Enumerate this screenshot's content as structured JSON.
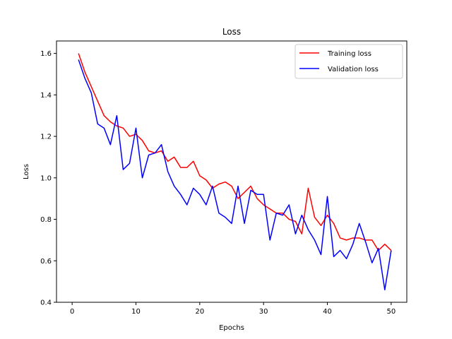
{
  "chart_data": {
    "type": "line",
    "title": "Loss",
    "xlabel": "Epochs",
    "ylabel": "Loss",
    "xlim": [
      -2.45,
      52.45
    ],
    "ylim": [
      0.4,
      1.66
    ],
    "xticks": [
      0,
      10,
      20,
      30,
      40,
      50
    ],
    "yticks": [
      0.4,
      0.6,
      0.8,
      1.0,
      1.2,
      1.4,
      1.6
    ],
    "grid": false,
    "legend_position": "top-right",
    "x": [
      1,
      2,
      3,
      4,
      5,
      6,
      7,
      8,
      9,
      10,
      11,
      12,
      13,
      14,
      15,
      16,
      17,
      18,
      19,
      20,
      21,
      22,
      23,
      24,
      25,
      26,
      27,
      28,
      29,
      30,
      31,
      32,
      33,
      34,
      35,
      36,
      37,
      38,
      39,
      40,
      41,
      42,
      43,
      44,
      45,
      46,
      47,
      48,
      49,
      50
    ],
    "series": [
      {
        "name": "Training loss",
        "color": "#ff0000",
        "values": [
          1.6,
          1.51,
          1.44,
          1.37,
          1.3,
          1.27,
          1.25,
          1.24,
          1.2,
          1.21,
          1.18,
          1.13,
          1.12,
          1.13,
          1.08,
          1.1,
          1.05,
          1.05,
          1.08,
          1.01,
          0.99,
          0.95,
          0.97,
          0.98,
          0.96,
          0.9,
          0.93,
          0.96,
          0.9,
          0.87,
          0.85,
          0.83,
          0.83,
          0.8,
          0.79,
          0.73,
          0.95,
          0.81,
          0.77,
          0.82,
          0.78,
          0.71,
          0.7,
          0.71,
          0.71,
          0.7,
          0.7,
          0.65,
          0.68,
          0.65
        ]
      },
      {
        "name": "Validation loss",
        "color": "#0000ff",
        "values": [
          1.57,
          1.48,
          1.41,
          1.26,
          1.24,
          1.16,
          1.3,
          1.04,
          1.07,
          1.24,
          1.0,
          1.11,
          1.12,
          1.16,
          1.03,
          0.96,
          0.92,
          0.87,
          0.95,
          0.92,
          0.87,
          0.96,
          0.83,
          0.81,
          0.78,
          0.96,
          0.78,
          0.94,
          0.92,
          0.92,
          0.7,
          0.83,
          0.82,
          0.87,
          0.73,
          0.82,
          0.75,
          0.7,
          0.63,
          0.91,
          0.62,
          0.65,
          0.61,
          0.68,
          0.78,
          0.69,
          0.59,
          0.66,
          0.46,
          0.65
        ]
      }
    ]
  }
}
